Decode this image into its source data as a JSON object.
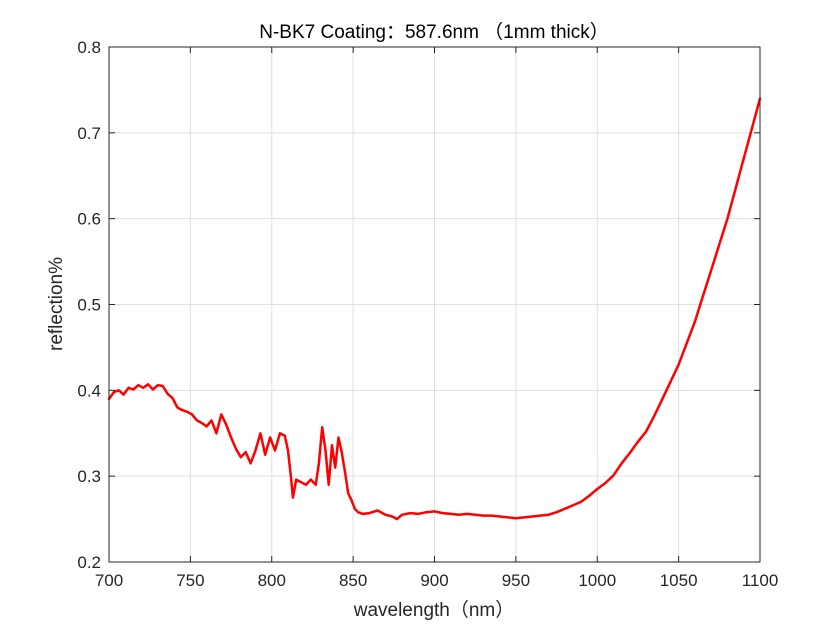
{
  "chart_data": {
    "type": "line",
    "title": "N-BK7 Coating：587.6nm （1mm thick）",
    "xlabel": "wavelength（nm）",
    "ylabel": "reflection%",
    "xlim": [
      700,
      1100
    ],
    "ylim": [
      0.2,
      0.8
    ],
    "xticks": [
      700,
      750,
      800,
      850,
      900,
      950,
      1000,
      1050,
      1100
    ],
    "xtick_labels": [
      "700",
      "750",
      "800",
      "850",
      "900",
      "950",
      "1000",
      "1050",
      "1100"
    ],
    "yticks": [
      0.2,
      0.3,
      0.4,
      0.5,
      0.6,
      0.7,
      0.8
    ],
    "ytick_labels": [
      "0.2",
      "0.3",
      "0.4",
      "0.5",
      "0.6",
      "0.7",
      "0.8"
    ],
    "grid": true,
    "series": [
      {
        "color": "#ff0000",
        "x": [
          700,
          703,
          706,
          709,
          712,
          715,
          718,
          721,
          724,
          727,
          730,
          733,
          736,
          739,
          742,
          745,
          748,
          751,
          754,
          757,
          760,
          763,
          766,
          769,
          772,
          775,
          778,
          781,
          784,
          787,
          790,
          793,
          796,
          799,
          802,
          805,
          808,
          810,
          812,
          813,
          815,
          818,
          821,
          824,
          827,
          829,
          831,
          833,
          835,
          837,
          839,
          841,
          843,
          845,
          847,
          849,
          851,
          853,
          856,
          860,
          865,
          870,
          874,
          877,
          880,
          885,
          890,
          895,
          900,
          905,
          910,
          915,
          920,
          925,
          930,
          935,
          940,
          945,
          950,
          955,
          960,
          965,
          970,
          975,
          980,
          985,
          990,
          995,
          1000,
          1005,
          1010,
          1015,
          1020,
          1025,
          1030,
          1035,
          1040,
          1045,
          1050,
          1055,
          1060,
          1065,
          1070,
          1075,
          1080,
          1085,
          1090,
          1095,
          1100
        ],
        "y": [
          0.39,
          0.398,
          0.4,
          0.395,
          0.403,
          0.401,
          0.406,
          0.403,
          0.407,
          0.401,
          0.406,
          0.405,
          0.396,
          0.391,
          0.38,
          0.377,
          0.375,
          0.372,
          0.365,
          0.362,
          0.358,
          0.365,
          0.35,
          0.372,
          0.36,
          0.345,
          0.332,
          0.322,
          0.328,
          0.315,
          0.33,
          0.35,
          0.325,
          0.345,
          0.33,
          0.35,
          0.347,
          0.33,
          0.295,
          0.275,
          0.296,
          0.293,
          0.29,
          0.296,
          0.29,
          0.315,
          0.357,
          0.33,
          0.29,
          0.336,
          0.31,
          0.345,
          0.328,
          0.305,
          0.28,
          0.272,
          0.262,
          0.258,
          0.256,
          0.257,
          0.26,
          0.255,
          0.253,
          0.25,
          0.255,
          0.257,
          0.256,
          0.258,
          0.259,
          0.257,
          0.256,
          0.255,
          0.256,
          0.255,
          0.254,
          0.254,
          0.253,
          0.252,
          0.251,
          0.252,
          0.253,
          0.254,
          0.255,
          0.258,
          0.262,
          0.266,
          0.27,
          0.277,
          0.285,
          0.292,
          0.301,
          0.315,
          0.327,
          0.34,
          0.352,
          0.37,
          0.39,
          0.41,
          0.43,
          0.455,
          0.48,
          0.51,
          0.54,
          0.57,
          0.6,
          0.635,
          0.67,
          0.705,
          0.74
        ]
      }
    ]
  }
}
